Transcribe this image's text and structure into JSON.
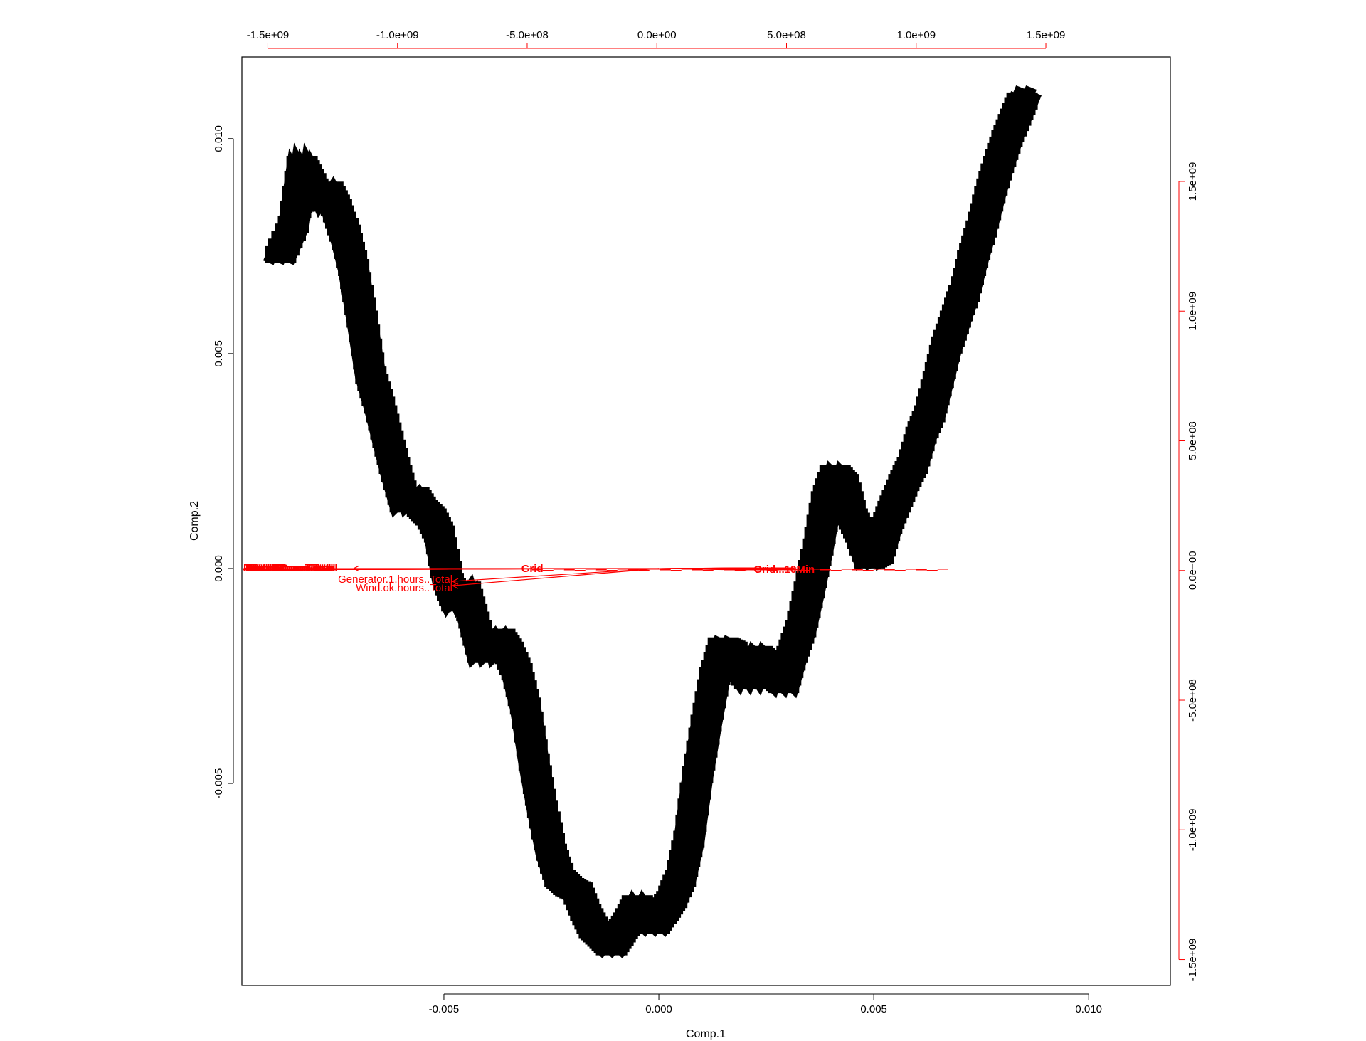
{
  "chart_data": {
    "type": "scatter",
    "subtype": "pca-biplot",
    "title": "",
    "xlabel": "Comp.1",
    "ylabel": "Comp.2",
    "xlim": [
      -0.0097,
      0.0119
    ],
    "ylim": [
      -0.0097,
      0.0119
    ],
    "x_ticks": [
      -0.005,
      0.0,
      0.005,
      0.01
    ],
    "x_tick_labels": [
      "-0.005",
      "0.000",
      "0.005",
      "0.010"
    ],
    "y_ticks": [
      -0.005,
      0.0,
      0.005,
      0.01
    ],
    "y_tick_labels": [
      "-0.005",
      "0.000",
      "0.005",
      "0.010"
    ],
    "top_axis": {
      "color": "#ff0000",
      "lim": [
        -1600000000.0,
        1980000000.0
      ],
      "ticks": [
        -1500000000.0,
        -1000000000.0,
        -500000000.0,
        0.0,
        500000000.0,
        1000000000.0,
        1500000000.0
      ],
      "tick_labels": [
        "-1.5e+09",
        "-1.0e+09",
        "-5.0e+08",
        "0.0e+00",
        "5.0e+08",
        "1.0e+09",
        "1.5e+09"
      ]
    },
    "right_axis": {
      "color": "#ff0000",
      "lim": [
        -1600000000.0,
        1980000000.0
      ],
      "ticks": [
        -1500000000.0,
        -1000000000.0,
        -500000000.0,
        0.0,
        500000000.0,
        1000000000.0,
        1500000000.0
      ],
      "tick_labels": [
        "-1.5e+09",
        "-1.0e+09",
        "-5.0e+08",
        "0.0e+00",
        "5.0e+08",
        "1.0e+09",
        "1.5e+09"
      ]
    },
    "point_color": "#000000",
    "trajectory": {
      "x": [
        -0.0088,
        -0.0085,
        -0.0083,
        -0.0081,
        -0.0079,
        -0.0077,
        -0.0075,
        -0.0073,
        -0.0071,
        -0.0069,
        -0.0067,
        -0.0065,
        -0.0063,
        -0.0061,
        -0.0059,
        -0.0057,
        -0.0055,
        -0.0053,
        -0.0051,
        -0.0049,
        -0.0047,
        -0.0045,
        -0.0043,
        -0.0041,
        -0.0039,
        -0.0037,
        -0.0035,
        -0.0033,
        -0.0031,
        -0.0029,
        -0.0027,
        -0.0025,
        -0.0023,
        -0.0021,
        -0.0019,
        -0.0017,
        -0.0015,
        -0.0013,
        -0.0011,
        -0.0009,
        -0.0007,
        -0.0005,
        -0.0003,
        -0.0001,
        0.0001,
        0.0003,
        0.0005,
        0.0007,
        0.0009,
        0.0011,
        0.0013,
        0.0015,
        0.0017,
        0.0019,
        0.0021,
        0.0023,
        0.0025,
        0.0027,
        0.0029,
        0.0031,
        0.0033,
        0.0035,
        0.0037,
        0.0039,
        0.0041,
        0.0043,
        0.0045,
        0.0047,
        0.0049,
        0.0051,
        0.0053,
        0.0055,
        0.0057,
        0.0059,
        0.0061,
        0.0063,
        0.0065,
        0.0067,
        0.0069,
        0.0071,
        0.0073,
        0.0075,
        0.0077,
        0.0079,
        0.0081,
        0.0083,
        0.0085
      ],
      "y": [
        0.0073,
        0.008,
        0.0094,
        0.009,
        0.0085,
        0.0088,
        0.0084,
        0.0078,
        0.007,
        0.0058,
        0.0045,
        0.0038,
        0.003,
        0.0022,
        0.0015,
        0.0017,
        0.0014,
        0.0012,
        0.0008,
        -0.0003,
        -0.0008,
        -0.0005,
        -0.0012,
        -0.002,
        -0.0018,
        -0.0016,
        -0.0019,
        -0.0024,
        -0.0032,
        -0.0045,
        -0.0056,
        -0.0066,
        -0.0072,
        -0.0074,
        -0.0075,
        -0.008,
        -0.0084,
        -0.0086,
        -0.0088,
        -0.0085,
        -0.0082,
        -0.0078,
        -0.0081,
        -0.0083,
        -0.008,
        -0.0077,
        -0.0072,
        -0.0063,
        -0.0048,
        -0.0036,
        -0.0025,
        -0.0018,
        -0.0019,
        -0.0023,
        -0.0026,
        -0.002,
        -0.0022,
        -0.0025,
        -0.0027,
        -0.002,
        -0.0014,
        -0.0005,
        0.0005,
        0.0016,
        0.0022,
        0.002,
        0.0012,
        0.0008,
        0.0002,
        0.0003,
        0.001,
        0.0015,
        0.002,
        0.0024,
        0.0031,
        0.0036,
        0.0044,
        0.0052,
        0.0058,
        0.0064,
        0.0072,
        0.0079,
        0.0087,
        0.0094,
        0.01,
        0.0105,
        0.011
      ]
    },
    "loadings": {
      "color": "#ff0000",
      "left_labels": [
        "Pitch.Down.Total",
        "Generator.1.hours..Total",
        "Wind.ok.hours..Total"
      ],
      "left_tips": [
        [
          -0.0071,
          0.0
        ],
        [
          -0.0048,
          -0.0003
        ],
        [
          -0.0048,
          -0.0004
        ]
      ],
      "right_label": "Grid...10Min",
      "right_tip": [
        0.0032,
        -0.0001
      ],
      "right_group_x_start": -0.0032
    }
  }
}
